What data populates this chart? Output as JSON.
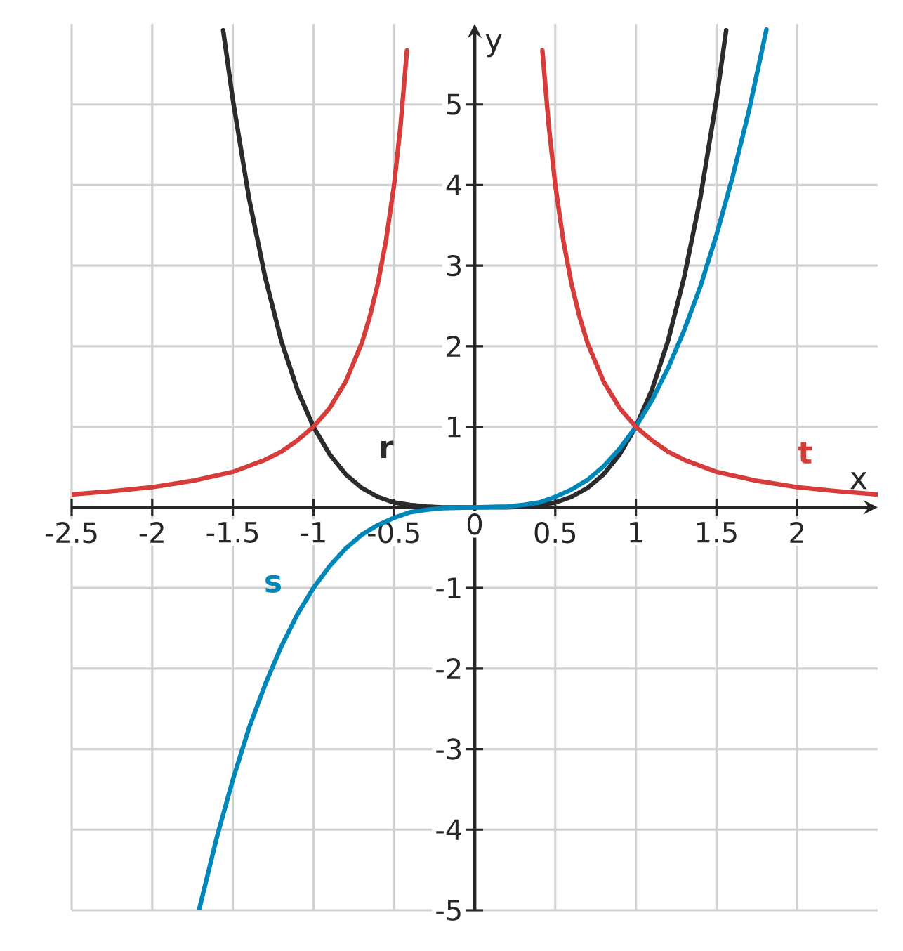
{
  "chart_data": {
    "type": "line",
    "xlabel": "x",
    "ylabel": "y",
    "xlim": [
      -2.5,
      2.5
    ],
    "ylim": [
      -5,
      6
    ],
    "xticks": [
      -2.5,
      -2,
      -1.5,
      -1,
      -0.5,
      0,
      0.5,
      1,
      1.5,
      2
    ],
    "yticks": [
      -5,
      -4,
      -3,
      -2,
      -1,
      1,
      2,
      3,
      4,
      5
    ],
    "grid": true,
    "legend": false,
    "series": [
      {
        "name": "r",
        "color": "#2b2b2e",
        "x": [
          -1.56,
          -1.5,
          -1.4,
          -1.3,
          -1.2,
          -1.1,
          -1,
          -0.9,
          -0.8,
          -0.7,
          -0.6,
          -0.5,
          -0.4,
          -0.3,
          -0.2,
          0,
          0.2,
          0.3,
          0.4,
          0.5,
          0.6,
          0.7,
          0.8,
          0.9,
          1,
          1.1,
          1.2,
          1.3,
          1.4,
          1.5,
          1.56
        ],
        "values": [
          5.92,
          5.06,
          3.84,
          2.86,
          2.07,
          1.46,
          1,
          0.66,
          0.41,
          0.24,
          0.13,
          0.06,
          0.03,
          0.01,
          0,
          0,
          0,
          0.01,
          0.03,
          0.06,
          0.13,
          0.24,
          0.41,
          0.66,
          1,
          1.46,
          2.07,
          2.86,
          3.84,
          5.06,
          5.92
        ]
      },
      {
        "name": "s",
        "color": "#0087ba",
        "x": [
          -1.71,
          -1.6,
          -1.5,
          -1.4,
          -1.3,
          -1.2,
          -1.1,
          -1,
          -0.9,
          -0.8,
          -0.7,
          -0.6,
          -0.5,
          -0.4,
          -0.3,
          -0.2,
          0,
          0.2,
          0.3,
          0.4,
          0.5,
          0.6,
          0.7,
          0.8,
          0.9,
          1,
          1.1,
          1.2,
          1.3,
          1.4,
          1.5,
          1.6,
          1.7,
          1.81
        ],
        "values": [
          -5,
          -4.1,
          -3.38,
          -2.74,
          -2.2,
          -1.73,
          -1.33,
          -1,
          -0.73,
          -0.51,
          -0.34,
          -0.22,
          -0.13,
          -0.06,
          -0.03,
          -0.01,
          0,
          0.01,
          0.03,
          0.06,
          0.13,
          0.22,
          0.34,
          0.51,
          0.73,
          1,
          1.33,
          1.73,
          2.2,
          2.74,
          3.38,
          4.1,
          4.91,
          5.93
        ]
      },
      {
        "name": "t",
        "color": "#d63c3a",
        "x": [
          -2.5,
          -2.25,
          -2,
          -1.75,
          -1.5,
          -1.3,
          -1.2,
          -1.1,
          -1,
          -0.9,
          -0.8,
          -0.7,
          -0.65,
          -0.6,
          -0.55,
          -0.5,
          -0.46,
          -0.42,
          0,
          0.42,
          0.46,
          0.5,
          0.55,
          0.6,
          0.65,
          0.7,
          0.8,
          0.9,
          1,
          1.1,
          1.2,
          1.3,
          1.5,
          1.75,
          2,
          2.25,
          2.5
        ],
        "values": [
          0.16,
          0.2,
          0.25,
          0.33,
          0.44,
          0.59,
          0.69,
          0.83,
          1,
          1.23,
          1.56,
          2.04,
          2.37,
          2.78,
          3.31,
          4,
          4.73,
          5.67,
          null,
          5.67,
          4.73,
          4,
          3.31,
          2.78,
          2.37,
          2.04,
          1.56,
          1.23,
          1,
          0.83,
          0.69,
          0.59,
          0.44,
          0.33,
          0.25,
          0.2,
          0.16
        ]
      }
    ]
  }
}
